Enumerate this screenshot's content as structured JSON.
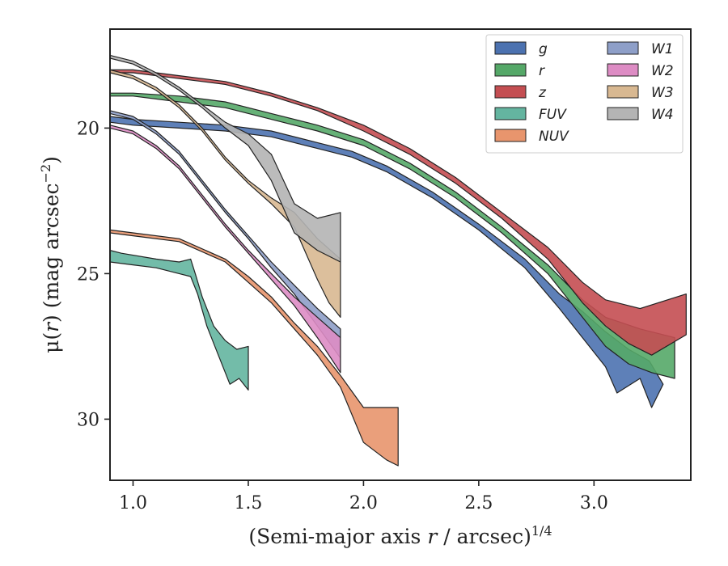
{
  "chart_data": {
    "type": "area",
    "xlabel_main": "(Semi-major axis ",
    "xlabel_var": "r",
    "xlabel_rest": " / arcsec)",
    "xlabel_sup": "1/4",
    "ylabel_pre": "μ(",
    "ylabel_var": "r",
    "ylabel_post": ") (mag arcsec",
    "ylabel_sup": "−2",
    "ylabel_end": ")",
    "xlim": [
      0.9,
      3.42
    ],
    "ylim": [
      32.1,
      16.6
    ],
    "y_inverted": true,
    "xticks": [
      1.0,
      1.5,
      2.0,
      2.5,
      3.0
    ],
    "xtick_labels": [
      "1.0",
      "1.5",
      "2.0",
      "2.5",
      "3.0"
    ],
    "yticks": [
      20,
      25,
      30
    ],
    "ytick_labels": [
      "20",
      "25",
      "30"
    ],
    "grid": false,
    "legend_position": "top-right",
    "legend_columns": 2,
    "series": [
      {
        "name": "g",
        "color": "#4c72b0",
        "upper": [
          [
            0.9,
            19.6
          ],
          [
            1.0,
            19.7
          ],
          [
            1.2,
            19.8
          ],
          [
            1.4,
            19.9
          ],
          [
            1.6,
            20.1
          ],
          [
            1.8,
            20.5
          ],
          [
            1.95,
            20.8
          ],
          [
            2.1,
            21.3
          ],
          [
            2.3,
            22.2
          ],
          [
            2.5,
            23.3
          ],
          [
            2.7,
            24.5
          ],
          [
            2.85,
            25.7
          ],
          [
            2.95,
            26.3
          ],
          [
            3.05,
            27.0
          ],
          [
            3.15,
            27.6
          ],
          [
            3.24,
            28.0
          ]
        ],
        "lower": [
          [
            0.9,
            19.8
          ],
          [
            1.0,
            19.9
          ],
          [
            1.2,
            20.0
          ],
          [
            1.4,
            20.1
          ],
          [
            1.6,
            20.3
          ],
          [
            1.8,
            20.7
          ],
          [
            1.95,
            21.0
          ],
          [
            2.1,
            21.5
          ],
          [
            2.3,
            22.4
          ],
          [
            2.5,
            23.5
          ],
          [
            2.7,
            24.8
          ],
          [
            2.85,
            26.2
          ],
          [
            2.95,
            27.2
          ],
          [
            3.05,
            28.2
          ],
          [
            3.1,
            29.1
          ],
          [
            3.2,
            28.6
          ],
          [
            3.25,
            29.6
          ],
          [
            3.3,
            28.8
          ]
        ]
      },
      {
        "name": "r",
        "color": "#55a868",
        "upper": [
          [
            0.9,
            18.8
          ],
          [
            1.0,
            18.8
          ],
          [
            1.2,
            18.9
          ],
          [
            1.4,
            19.1
          ],
          [
            1.6,
            19.5
          ],
          [
            1.8,
            19.9
          ],
          [
            2.0,
            20.4
          ],
          [
            2.2,
            21.2
          ],
          [
            2.4,
            22.2
          ],
          [
            2.6,
            23.4
          ],
          [
            2.8,
            24.7
          ],
          [
            2.95,
            25.9
          ],
          [
            3.05,
            26.5
          ],
          [
            3.2,
            26.9
          ],
          [
            3.35,
            27.2
          ]
        ],
        "lower": [
          [
            0.9,
            18.9
          ],
          [
            1.0,
            18.9
          ],
          [
            1.2,
            19.1
          ],
          [
            1.4,
            19.3
          ],
          [
            1.6,
            19.7
          ],
          [
            1.8,
            20.1
          ],
          [
            2.0,
            20.6
          ],
          [
            2.2,
            21.4
          ],
          [
            2.4,
            22.4
          ],
          [
            2.6,
            23.6
          ],
          [
            2.8,
            25.0
          ],
          [
            2.95,
            26.5
          ],
          [
            3.05,
            27.5
          ],
          [
            3.15,
            28.1
          ],
          [
            3.25,
            28.4
          ],
          [
            3.35,
            28.6
          ]
        ]
      },
      {
        "name": "z",
        "color": "#c44e52",
        "upper": [
          [
            0.9,
            18.0
          ],
          [
            1.0,
            18.0
          ],
          [
            1.2,
            18.2
          ],
          [
            1.4,
            18.4
          ],
          [
            1.6,
            18.8
          ],
          [
            1.8,
            19.3
          ],
          [
            2.0,
            19.9
          ],
          [
            2.2,
            20.7
          ],
          [
            2.4,
            21.7
          ],
          [
            2.6,
            22.9
          ],
          [
            2.8,
            24.1
          ],
          [
            2.95,
            25.3
          ],
          [
            3.05,
            25.9
          ],
          [
            3.2,
            26.2
          ],
          [
            3.4,
            25.7
          ]
        ],
        "lower": [
          [
            0.9,
            18.1
          ],
          [
            1.0,
            18.1
          ],
          [
            1.2,
            18.3
          ],
          [
            1.4,
            18.5
          ],
          [
            1.6,
            18.9
          ],
          [
            1.8,
            19.4
          ],
          [
            2.0,
            20.1
          ],
          [
            2.2,
            20.9
          ],
          [
            2.4,
            21.9
          ],
          [
            2.6,
            23.1
          ],
          [
            2.8,
            24.5
          ],
          [
            2.95,
            26.0
          ],
          [
            3.05,
            26.8
          ],
          [
            3.15,
            27.4
          ],
          [
            3.25,
            27.8
          ],
          [
            3.4,
            27.1
          ]
        ]
      },
      {
        "name": "FUV",
        "color": "#64b5a0",
        "upper": [
          [
            0.9,
            24.2
          ],
          [
            0.95,
            24.3
          ],
          [
            1.1,
            24.5
          ],
          [
            1.2,
            24.6
          ],
          [
            1.25,
            24.5
          ],
          [
            1.27,
            25.0
          ],
          [
            1.3,
            25.8
          ],
          [
            1.35,
            26.8
          ],
          [
            1.4,
            27.3
          ],
          [
            1.45,
            27.6
          ],
          [
            1.5,
            27.5
          ]
        ],
        "lower": [
          [
            0.9,
            24.6
          ],
          [
            1.0,
            24.7
          ],
          [
            1.1,
            24.8
          ],
          [
            1.2,
            25.0
          ],
          [
            1.25,
            25.1
          ],
          [
            1.28,
            25.7
          ],
          [
            1.32,
            26.8
          ],
          [
            1.37,
            27.8
          ],
          [
            1.42,
            28.8
          ],
          [
            1.46,
            28.6
          ],
          [
            1.5,
            29.0
          ]
        ]
      },
      {
        "name": "NUV",
        "color": "#e8956d",
        "upper": [
          [
            0.9,
            23.5
          ],
          [
            1.0,
            23.6
          ],
          [
            1.2,
            23.8
          ],
          [
            1.4,
            24.5
          ],
          [
            1.5,
            25.1
          ],
          [
            1.6,
            25.8
          ],
          [
            1.7,
            26.7
          ],
          [
            1.8,
            27.5
          ],
          [
            1.9,
            28.5
          ],
          [
            2.0,
            29.6
          ],
          [
            2.15,
            29.6
          ]
        ],
        "lower": [
          [
            0.9,
            23.6
          ],
          [
            1.0,
            23.7
          ],
          [
            1.2,
            23.9
          ],
          [
            1.4,
            24.6
          ],
          [
            1.5,
            25.3
          ],
          [
            1.6,
            26.0
          ],
          [
            1.7,
            26.9
          ],
          [
            1.8,
            27.8
          ],
          [
            1.9,
            28.9
          ],
          [
            2.0,
            30.8
          ],
          [
            2.1,
            31.4
          ],
          [
            2.15,
            31.6
          ]
        ]
      },
      {
        "name": "W1",
        "color": "#8e9fc8",
        "upper": [
          [
            0.9,
            19.4
          ],
          [
            1.0,
            19.6
          ],
          [
            1.1,
            20.1
          ],
          [
            1.2,
            20.8
          ],
          [
            1.3,
            21.8
          ],
          [
            1.4,
            22.8
          ],
          [
            1.5,
            23.7
          ],
          [
            1.6,
            24.6
          ],
          [
            1.7,
            25.4
          ],
          [
            1.8,
            26.2
          ],
          [
            1.9,
            26.9
          ]
        ],
        "lower": [
          [
            0.9,
            19.5
          ],
          [
            1.0,
            19.7
          ],
          [
            1.1,
            20.2
          ],
          [
            1.2,
            20.9
          ],
          [
            1.3,
            21.9
          ],
          [
            1.4,
            22.9
          ],
          [
            1.5,
            23.8
          ],
          [
            1.6,
            24.8
          ],
          [
            1.7,
            25.7
          ],
          [
            1.8,
            26.8
          ],
          [
            1.9,
            27.9
          ]
        ]
      },
      {
        "name": "W2",
        "color": "#dd8cc4",
        "upper": [
          [
            0.9,
            19.9
          ],
          [
            1.0,
            20.1
          ],
          [
            1.1,
            20.6
          ],
          [
            1.2,
            21.3
          ],
          [
            1.3,
            22.3
          ],
          [
            1.4,
            23.3
          ],
          [
            1.5,
            24.2
          ],
          [
            1.6,
            25.0
          ],
          [
            1.7,
            25.8
          ],
          [
            1.8,
            26.5
          ],
          [
            1.9,
            27.2
          ]
        ],
        "lower": [
          [
            0.9,
            20.0
          ],
          [
            1.0,
            20.2
          ],
          [
            1.1,
            20.7
          ],
          [
            1.2,
            21.4
          ],
          [
            1.3,
            22.4
          ],
          [
            1.4,
            23.4
          ],
          [
            1.5,
            24.3
          ],
          [
            1.6,
            25.2
          ],
          [
            1.7,
            26.1
          ],
          [
            1.8,
            27.2
          ],
          [
            1.9,
            28.4
          ]
        ]
      },
      {
        "name": "W3",
        "color": "#d8b891",
        "upper": [
          [
            0.9,
            18.0
          ],
          [
            1.0,
            18.2
          ],
          [
            1.1,
            18.6
          ],
          [
            1.2,
            19.2
          ],
          [
            1.3,
            20.0
          ],
          [
            1.4,
            21.0
          ],
          [
            1.5,
            21.8
          ],
          [
            1.6,
            22.4
          ],
          [
            1.7,
            22.9
          ],
          [
            1.8,
            23.8
          ],
          [
            1.9,
            24.5
          ]
        ],
        "lower": [
          [
            0.9,
            18.1
          ],
          [
            1.0,
            18.3
          ],
          [
            1.1,
            18.7
          ],
          [
            1.2,
            19.3
          ],
          [
            1.3,
            20.1
          ],
          [
            1.4,
            21.1
          ],
          [
            1.5,
            21.9
          ],
          [
            1.6,
            22.6
          ],
          [
            1.7,
            23.4
          ],
          [
            1.8,
            25.2
          ],
          [
            1.85,
            26.0
          ],
          [
            1.9,
            26.5
          ]
        ]
      },
      {
        "name": "W4",
        "color": "#b4b4b4",
        "upper": [
          [
            0.9,
            17.5
          ],
          [
            1.0,
            17.7
          ],
          [
            1.1,
            18.1
          ],
          [
            1.2,
            18.6
          ],
          [
            1.3,
            19.2
          ],
          [
            1.4,
            19.8
          ],
          [
            1.5,
            20.2
          ],
          [
            1.6,
            20.9
          ],
          [
            1.7,
            22.6
          ],
          [
            1.8,
            23.1
          ],
          [
            1.9,
            22.9
          ]
        ],
        "lower": [
          [
            0.9,
            17.6
          ],
          [
            1.0,
            17.8
          ],
          [
            1.1,
            18.2
          ],
          [
            1.2,
            18.7
          ],
          [
            1.3,
            19.3
          ],
          [
            1.4,
            20.0
          ],
          [
            1.5,
            20.6
          ],
          [
            1.6,
            21.8
          ],
          [
            1.7,
            23.6
          ],
          [
            1.8,
            24.2
          ],
          [
            1.9,
            24.6
          ]
        ]
      }
    ]
  }
}
